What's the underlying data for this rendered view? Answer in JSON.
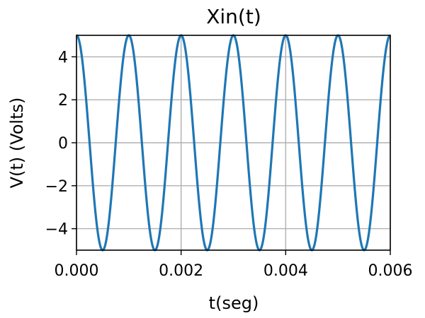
{
  "chart_data": {
    "type": "line",
    "title": "Xin(t)",
    "xlabel": "t(seg)",
    "ylabel": "V(t) (Volts)",
    "xlim": [
      0,
      0.006
    ],
    "ylim": [
      -5,
      5
    ],
    "xticks": [
      0,
      0.002,
      0.004,
      0.006
    ],
    "xtick_labels": [
      "0.000",
      "0.002",
      "0.004",
      "0.006"
    ],
    "yticks": [
      -4,
      -2,
      0,
      2,
      4
    ],
    "ytick_labels": [
      "−4",
      "−2",
      "0",
      "2",
      "4"
    ],
    "grid": true,
    "series": [
      {
        "function": "cosine",
        "amplitude": 5,
        "frequency_hz": 1000,
        "x_range": [
          0,
          0.006
        ],
        "color": "#1f77b4"
      }
    ]
  }
}
